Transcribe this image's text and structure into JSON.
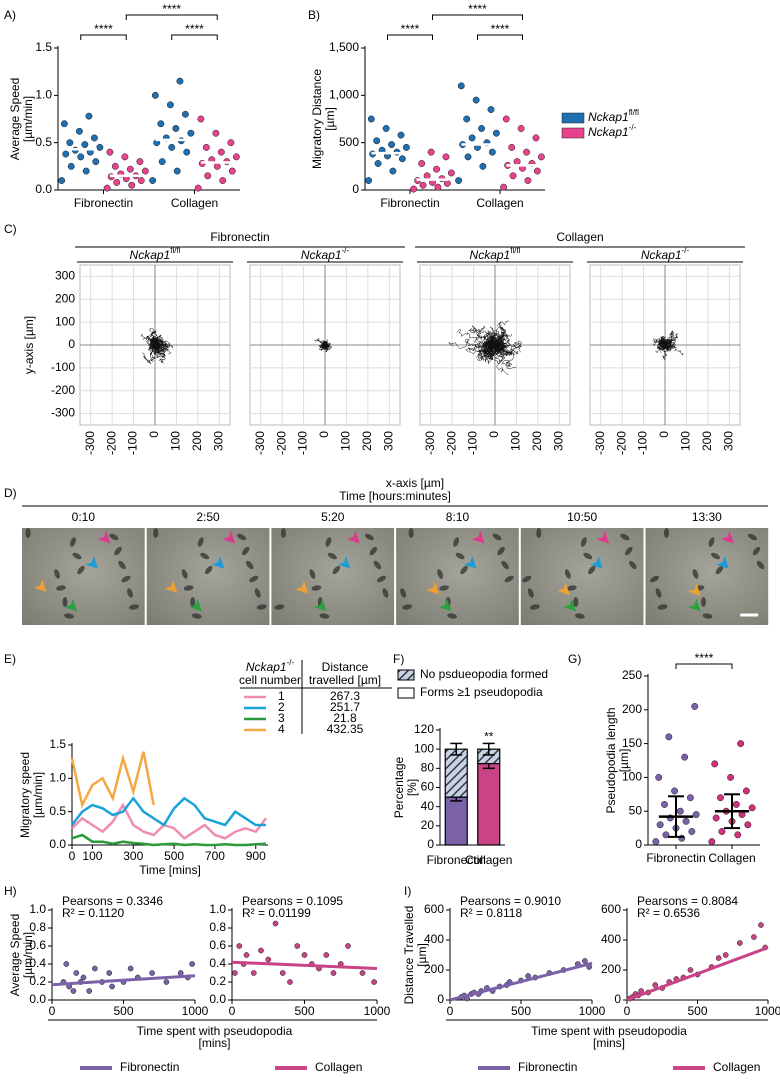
{
  "chart_data": [
    {
      "panel": "A)",
      "type": "dot-column",
      "ylabel": [
        "Average Speed",
        "[µm/min]"
      ],
      "categories": [
        "Fibronectin",
        "Collagen"
      ],
      "ylim": [
        0,
        1.5
      ],
      "yticks": [
        {
          "value": 0,
          "label": "0.0"
        },
        0.5,
        {
          "value": 1,
          "label": "1.0"
        },
        1.5
      ],
      "summary_color": "#ffffff",
      "significance": [
        "****",
        "****",
        "****"
      ],
      "series": [
        {
          "name": "Nckap1",
          "sup": "fl/fl",
          "color": "#1f6fb2",
          "values": [
            0.43,
            0.53
          ],
          "points": [
            [
              0.1,
              0.2,
              0.25,
              0.3,
              0.35,
              0.38,
              0.4,
              0.42,
              0.45,
              0.48,
              0.5,
              0.55,
              0.62,
              0.7,
              0.78
            ],
            [
              0.1,
              0.2,
              0.3,
              0.4,
              0.45,
              0.5,
              0.52,
              0.55,
              0.6,
              0.65,
              0.7,
              0.8,
              0.9,
              1.0,
              1.15
            ]
          ]
        },
        {
          "name": "Nckap1",
          "sup": "-/-",
          "color": "#e8438c",
          "values": [
            0.15,
            0.29
          ],
          "points": [
            [
              0.02,
              0.05,
              0.08,
              0.1,
              0.12,
              0.14,
              0.15,
              0.17,
              0.2,
              0.22,
              0.25,
              0.3,
              0.35,
              0.4
            ],
            [
              0.02,
              0.1,
              0.15,
              0.2,
              0.25,
              0.28,
              0.3,
              0.32,
              0.35,
              0.4,
              0.45,
              0.5,
              0.6,
              0.75
            ]
          ]
        }
      ]
    },
    {
      "panel": "B)",
      "type": "dot-column",
      "ylabel": [
        "Migratory Distance",
        "[µm]"
      ],
      "categories": [
        "Fibronectin",
        "Collagen"
      ],
      "ylim": [
        0,
        1500
      ],
      "yticks": [
        0,
        500,
        {
          "value": 1000,
          "label": "1,000"
        },
        {
          "value": 1500,
          "label": "1,500"
        }
      ],
      "summary_color": "#ffffff",
      "legend": "right",
      "significance": [
        "****",
        "****",
        "****"
      ],
      "series": [
        {
          "name": "Nckap1",
          "sup": "fl/fl",
          "color": "#1f6fb2",
          "values": [
            390,
            480
          ],
          "points": [
            [
              100,
              200,
              280,
              330,
              360,
              380,
              400,
              420,
              450,
              480,
              520,
              580,
              650,
              750
            ],
            [
              100,
              250,
              350,
              400,
              450,
              480,
              500,
              550,
              600,
              650,
              750,
              850,
              950,
              1100
            ]
          ]
        },
        {
          "name": "Nckap1",
          "sup": "-/-",
          "color": "#e8438c",
          "values": [
            110,
            260
          ],
          "points": [
            [
              10,
              30,
              50,
              70,
              80,
              100,
              120,
              150,
              180,
              220,
              280,
              350,
              400
            ],
            [
              30,
              100,
              150,
              200,
              230,
              260,
              280,
              300,
              350,
              400,
              450,
              550,
              650,
              750
            ]
          ]
        }
      ]
    },
    {
      "panel": "C)",
      "type": "trajectory-grid",
      "groups": [
        "Fibronectin",
        "Collagen"
      ],
      "panels": [
        {
          "name": "Nckap1",
          "sup": "fl/fl"
        },
        {
          "name": "Nckap1",
          "sup": "-/-"
        },
        {
          "name": "Nckap1",
          "sup": "fl/fl"
        },
        {
          "name": "Nckap1",
          "sup": "-/-"
        }
      ],
      "xlim": [
        -350,
        350
      ],
      "ylim": [
        -350,
        350
      ],
      "xticks": [
        -300,
        -200,
        -100,
        0,
        100,
        200,
        300
      ],
      "yticks": [
        -300,
        -200,
        -100,
        0,
        100,
        200,
        300
      ],
      "grid": true,
      "xlabel": "x-axis [µm]",
      "ylabel": "y-axis [µm]"
    },
    {
      "panel": "D)",
      "type": "image-sequence",
      "title": "Time [hours:minutes]",
      "frames": [
        "0:10",
        "2:50",
        "5:20",
        "8:10",
        "10:50",
        "13:30"
      ]
    },
    {
      "panel": "E)",
      "type": "line",
      "ylabel": [
        "Migratory speed",
        "[µm/min]"
      ],
      "xlabel": "Time [mins]",
      "xlim": [
        0,
        960
      ],
      "xticks": [
        0,
        100,
        300,
        500,
        700,
        900
      ],
      "ylim": [
        0,
        1.5
      ],
      "yticks": [
        {
          "value": 0,
          "label": "0.0"
        },
        0.5,
        {
          "value": 1,
          "label": "1.0"
        },
        1.5
      ],
      "legend_title": {
        "name": "Nckap1",
        "sup": "-/-",
        "sub": "cell number"
      },
      "distance_title": [
        "Distance",
        "travelled [µm]"
      ],
      "x": [
        0,
        50,
        100,
        150,
        200,
        250,
        300,
        350,
        400,
        450,
        500,
        550,
        600,
        650,
        700,
        750,
        800,
        850,
        900,
        950
      ],
      "series": [
        {
          "name": "1",
          "color": "#f08cb0",
          "distance": 267.3,
          "values": [
            0.25,
            0.4,
            0.3,
            0.2,
            0.35,
            0.6,
            0.3,
            0.2,
            0.15,
            0.3,
            0.25,
            0.1,
            0.2,
            0.3,
            0.15,
            0.1,
            0.2,
            0.25,
            0.2,
            0.4
          ]
        },
        {
          "name": "2",
          "color": "#1aa3d9",
          "distance": 251.7,
          "values": [
            0.3,
            0.5,
            0.6,
            0.55,
            0.45,
            0.5,
            0.7,
            0.5,
            0.4,
            0.3,
            0.55,
            0.7,
            0.6,
            0.4,
            0.35,
            0.3,
            0.5,
            0.4,
            0.3,
            0.3
          ]
        },
        {
          "name": "3",
          "color": "#2a9a3a",
          "distance": 21.8,
          "values": [
            0.1,
            0.15,
            0.05,
            0.05,
            0.02,
            0.05,
            0.03,
            0.02,
            0,
            0.01,
            0.02,
            0,
            0.01,
            0,
            0,
            0.01,
            0,
            0,
            0.01,
            0.02
          ]
        },
        {
          "name": "4",
          "color": "#f5a742",
          "distance": 432.35,
          "values": [
            1.3,
            0.6,
            0.9,
            1.0,
            0.7,
            1.3,
            0.8,
            1.4,
            0.6,
            null,
            null,
            null,
            null,
            null,
            null,
            null,
            null,
            null,
            null,
            null
          ]
        }
      ]
    },
    {
      "panel": "F)",
      "type": "stacked-bar",
      "ylabel": [
        "Percentage",
        "[%]"
      ],
      "categories": [
        "Fibronectin",
        "Collagen"
      ],
      "ylim": [
        0,
        120
      ],
      "yticks": [
        0,
        20,
        40,
        60,
        80,
        100,
        120
      ],
      "annotation": "**",
      "series": [
        {
          "name": "Forms ≥1 pseudopodia",
          "colors": [
            "#7b62a8",
            "#c94386"
          ],
          "values": [
            50,
            85
          ],
          "errors": [
            4,
            5
          ]
        },
        {
          "name": "No psdueopodia formed",
          "pattern": "hatch",
          "values": [
            50,
            15
          ],
          "errors": [
            6,
            6
          ]
        }
      ]
    },
    {
      "panel": "G)",
      "type": "dot-column",
      "ylabel": [
        "Pseudopodia length",
        "[µm]"
      ],
      "categories": [
        "Fibronectin",
        "Collagen"
      ],
      "ylim": [
        0,
        250
      ],
      "yticks": [
        0,
        50,
        100,
        150,
        200,
        250
      ],
      "summary_color": "#000000",
      "significance": [
        "****"
      ],
      "series": [
        {
          "colors": [
            "#7b62a8",
            "#d0317a"
          ],
          "values": [
            42,
            50
          ],
          "errors": [
            30,
            25
          ],
          "points": [
            [
              5,
              10,
              15,
              20,
              25,
              30,
              35,
              40,
              45,
              50,
              60,
              70,
              80,
              100,
              130,
              160,
              205
            ],
            [
              5,
              15,
              20,
              30,
              35,
              40,
              45,
              50,
              55,
              60,
              70,
              80,
              100,
              120,
              150
            ]
          ]
        }
      ]
    },
    {
      "panel": "H)",
      "type": "scatter",
      "ylabel": [
        "Average Speed",
        "[µm/min]"
      ],
      "xlabel": [
        "Time spent with pseudopodia",
        "[mins]"
      ],
      "legend": [
        {
          "name": "Fibronectin",
          "color": "#7b62a8"
        },
        {
          "name": "Collagen",
          "color": "#c94386"
        }
      ],
      "stats": [
        "Pearsons = 0.3346",
        "R² = 0.1120"
      ],
      "color": "#7b62a8",
      "xlim": [
        0,
        1000
      ],
      "xticks": [
        0,
        500,
        1000
      ],
      "ylim": [
        0,
        1
      ],
      "yticks": [
        {
          "value": 0,
          "label": "0.0"
        },
        0.2,
        0.4,
        0.6,
        0.8,
        {
          "value": 1,
          "label": "1.0"
        }
      ],
      "x": [
        80,
        100,
        120,
        150,
        170,
        200,
        220,
        260,
        300,
        350,
        400,
        420,
        500,
        550,
        600,
        700,
        800,
        900,
        950,
        980
      ],
      "values": [
        0.2,
        0.4,
        0.15,
        0.1,
        0.3,
        0.2,
        0.25,
        0.1,
        0.35,
        0.2,
        0.3,
        0.15,
        0.2,
        0.35,
        0.25,
        0.3,
        0.2,
        0.3,
        0.25,
        0.4
      ],
      "fit": {
        "x": [
          0,
          1000
        ],
        "values": [
          0.17,
          0.27
        ]
      }
    },
    {
      "type": "scatter",
      "stats": [
        "Pearsons = 0.1095",
        "R² = 0.01199"
      ],
      "color": "#c94386",
      "xlim": [
        0,
        1000
      ],
      "xticks": [
        0,
        500,
        1000
      ],
      "ylim": [
        0,
        1
      ],
      "yticks": [
        {
          "value": 0,
          "label": "0.0"
        },
        0.2,
        0.4,
        0.6,
        0.8,
        {
          "value": 1,
          "label": "1.0"
        }
      ],
      "x": [
        20,
        50,
        80,
        100,
        150,
        200,
        250,
        300,
        350,
        400,
        450,
        500,
        550,
        600,
        650,
        700,
        750,
        800,
        900,
        980
      ],
      "values": [
        0.3,
        0.6,
        0.4,
        0.5,
        0.3,
        0.55,
        0.45,
        0.85,
        0.3,
        0.2,
        0.6,
        0.5,
        0.4,
        0.35,
        0.5,
        0.3,
        0.4,
        0.6,
        0.3,
        0.2
      ],
      "fit": {
        "x": [
          0,
          1000
        ],
        "values": [
          0.42,
          0.35
        ]
      }
    },
    {
      "panel": "I)",
      "type": "scatter",
      "ylabel": [
        "Distance Travelled",
        "[µm]"
      ],
      "xlabel": [
        "Time spent with pseudopodia",
        "[mins]"
      ],
      "legend": [
        {
          "name": "Fibronectin",
          "color": "#7b62a8"
        },
        {
          "name": "Collagen",
          "color": "#c94386"
        }
      ],
      "stats": [
        "Pearsons = 0.9010",
        "R² = 0.8118"
      ],
      "color": "#7b62a8",
      "xlim": [
        0,
        1000
      ],
      "xticks": [
        0,
        500,
        1000
      ],
      "ylim": [
        0,
        600
      ],
      "yticks": [
        0,
        200,
        400,
        600
      ],
      "x": [
        80,
        100,
        120,
        150,
        170,
        200,
        220,
        260,
        300,
        350,
        400,
        420,
        500,
        550,
        600,
        700,
        800,
        900,
        950,
        980
      ],
      "values": [
        20,
        30,
        10,
        40,
        50,
        40,
        60,
        80,
        60,
        90,
        100,
        120,
        130,
        160,
        150,
        180,
        200,
        240,
        260,
        220
      ],
      "fit": {
        "x": [
          0,
          1000
        ],
        "values": [
          0,
          245
        ]
      }
    },
    {
      "type": "scatter",
      "stats": [
        "Pearsons = 0.8084",
        "R² = 0.6536"
      ],
      "color": "#c94386",
      "xlim": [
        0,
        1000
      ],
      "xticks": [
        0,
        500,
        1000
      ],
      "ylim": [
        0,
        600
      ],
      "yticks": [
        0,
        200,
        400,
        600
      ],
      "x": [
        20,
        40,
        60,
        80,
        100,
        150,
        200,
        250,
        300,
        350,
        400,
        450,
        500,
        600,
        650,
        700,
        800,
        900,
        950,
        980
      ],
      "values": [
        10,
        20,
        40,
        30,
        60,
        50,
        100,
        80,
        120,
        140,
        150,
        200,
        170,
        220,
        280,
        300,
        380,
        420,
        500,
        350
      ],
      "fit": {
        "x": [
          0,
          1000
        ],
        "values": [
          0,
          350
        ]
      }
    }
  ]
}
